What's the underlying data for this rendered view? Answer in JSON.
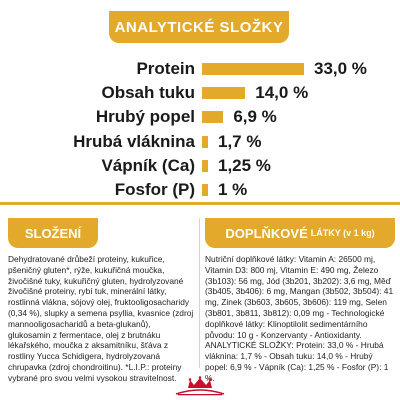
{
  "header": {
    "title": "ANALYTICKÉ SLOŽKY"
  },
  "analytics": {
    "rows": [
      {
        "label": "Protein",
        "value": "33,0 %",
        "fraction": 0.33
      },
      {
        "label": "Obsah tuku",
        "value": "14,0 %",
        "fraction": 0.14
      },
      {
        "label": "Hrubý popel",
        "value": "6,9 %",
        "fraction": 0.069
      },
      {
        "label": "Hrubá vláknina",
        "value": "1,7 %",
        "fraction": 0.017
      },
      {
        "label": "Vápník (Ca)",
        "value": "1,25 %",
        "fraction": 0.0125
      },
      {
        "label": "Fosfor (P)",
        "value": "1 %",
        "fraction": 0.01
      }
    ]
  },
  "composition": {
    "title": "SLOŽENÍ",
    "text": "Dehydratované drůbeží proteiny, kukuřice, pšeničný gluten*, rýže, kukuřičná moučka, živočišné tuky, kukuřičný gluten, hydrolyzované živočišné proteiny, rybí tuk, minerální látky, rostlinná vlákna, sójový olej, fruktooligosacharidy (0,34 %), slupky a semena psyllia, kvasnice (zdroj mannooligosacharidů a beta-glukanů), glukosamin z fermentace, olej z brutnáku lékařského, moučka z aksamitníku, šťáva z rostliny Yucca Schidigera, hydrolyzovaná chrupavka (zdroj chondroitinu). *L.I.P.: proteiny vybrané pro svou velmi vysokou stravitelnost."
  },
  "additives": {
    "title": "DOPLŇKOVÉ",
    "subtitle": "LÁTKY (v 1 kg)",
    "text": "Nutriční doplňkové látky: Vitamin A: 26500 mj, Vitamin D3: 800 mj, Vitamin E: 490 mg, Železo (3b103): 56 mg, Jód (3b201, 3b202): 3,6 mg, Měď (3b405, 3b406): 6 mg, Mangan (3b502, 3b504): 41 mg, Zinek (3b603, 3b605, 3b606): 119 mg, Selen (3b801, 3b811, 3b812): 0,09 mg - Technologické doplňkové látky: Klinoptilolit sedimentárního původu: 10 g - Konzervanty - Antioxidanty. ANALYTICKÉ SLOŽKY: Protein: 33,0 % - Hrubá vláknina: 1,7 % - Obsah tuku: 14,0 % - Hrubý popel: 6,9 % - Vápník (Ca): 1,25 % - Fosfor (P): 1 %."
  },
  "brand": {
    "name": "ROYAL CANIN"
  },
  "colors": {
    "accent": "#e2a92b",
    "logo": "#c8102e",
    "text": "#1a1a1a"
  }
}
